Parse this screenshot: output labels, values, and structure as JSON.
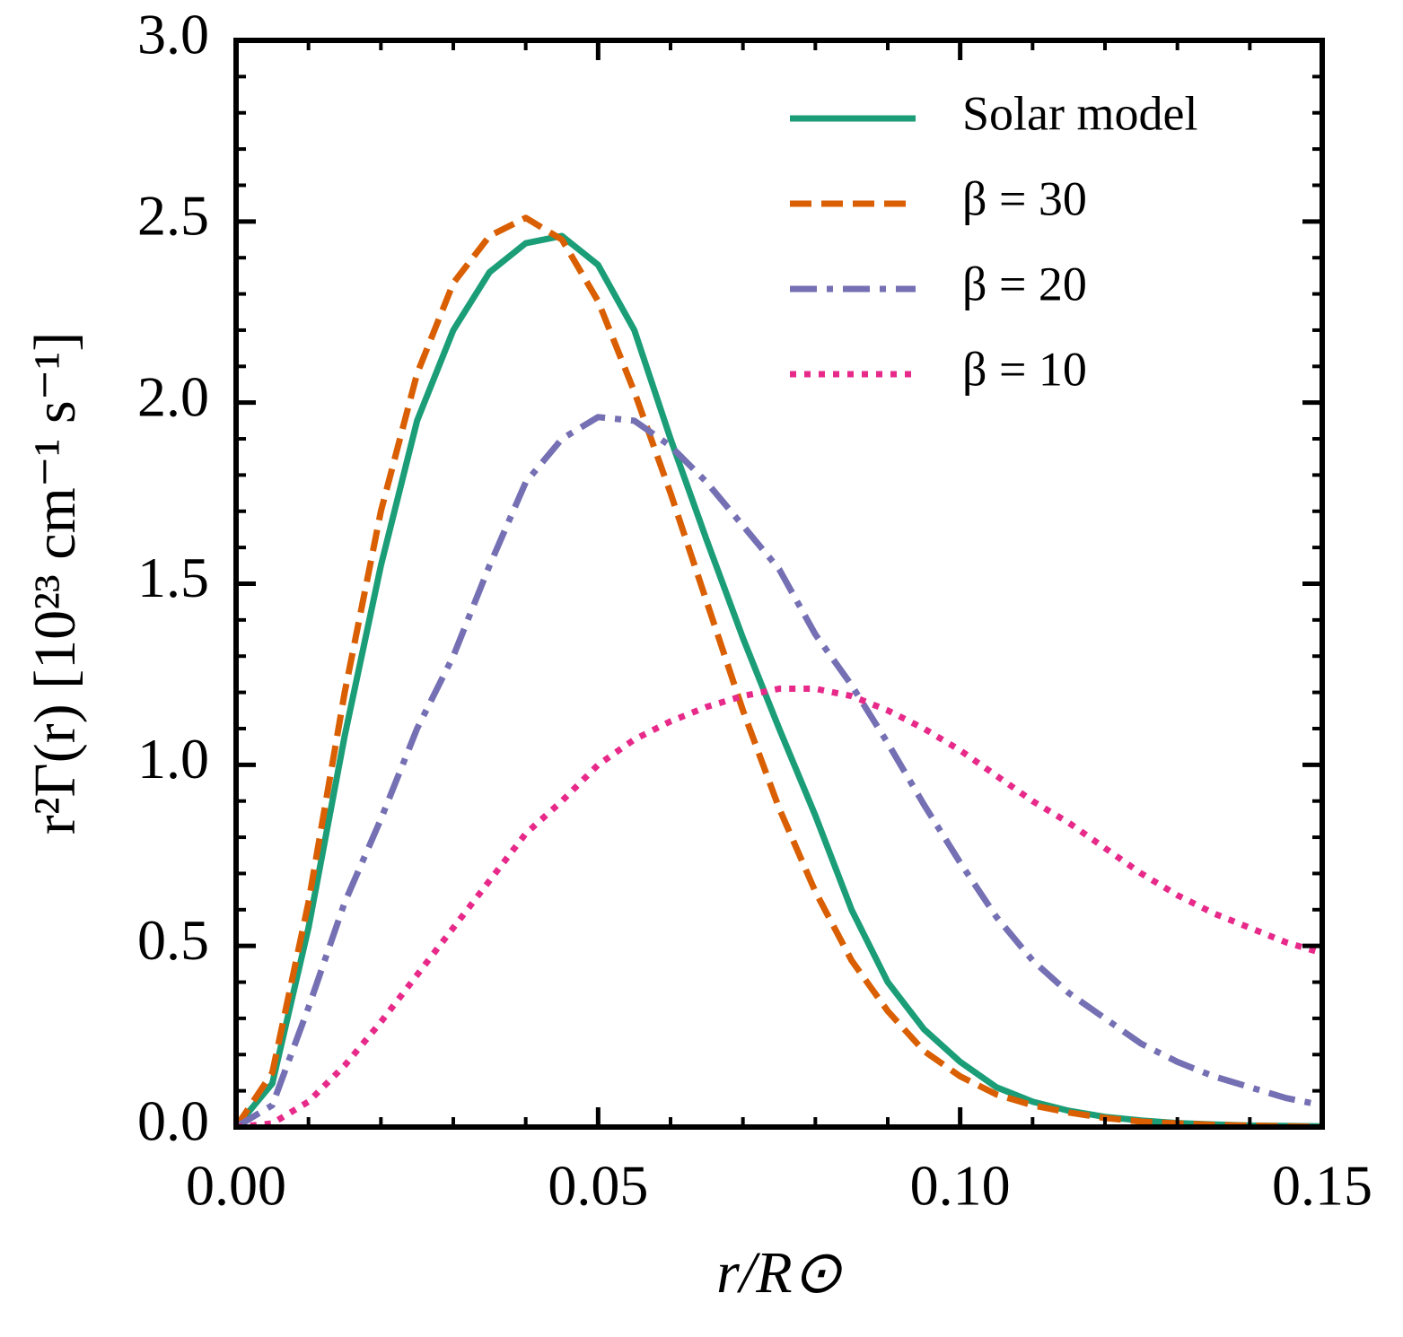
{
  "chart_data": {
    "type": "line",
    "xlabel": "r/R⊙",
    "ylabel": "r²Γ(r) [10²³ cm⁻¹ s⁻¹]",
    "x": [
      0,
      0.005,
      0.01,
      0.015,
      0.02,
      0.025,
      0.03,
      0.035,
      0.04,
      0.045,
      0.05,
      0.055,
      0.06,
      0.065,
      0.07,
      0.075,
      0.08,
      0.085,
      0.09,
      0.095,
      0.1,
      0.105,
      0.11,
      0.115,
      0.12,
      0.125,
      0.13,
      0.135,
      0.14,
      0.145,
      0.15
    ],
    "series": [
      {
        "name": "Solar model",
        "color": "#1b9e77",
        "linestyle": "solid",
        "values": [
          0,
          0.12,
          0.55,
          1.08,
          1.55,
          1.95,
          2.2,
          2.36,
          2.44,
          2.46,
          2.38,
          2.2,
          1.9,
          1.62,
          1.35,
          1.1,
          0.86,
          0.6,
          0.4,
          0.27,
          0.18,
          0.11,
          0.07,
          0.045,
          0.028,
          0.018,
          0.011,
          0.007,
          0.004,
          0.003,
          0.002
        ]
      },
      {
        "name": "β = 30",
        "color": "#d95f02",
        "linestyle": "dashed",
        "values": [
          0,
          0.15,
          0.62,
          1.2,
          1.7,
          2.08,
          2.33,
          2.46,
          2.51,
          2.45,
          2.28,
          2.03,
          1.75,
          1.45,
          1.15,
          0.88,
          0.65,
          0.46,
          0.32,
          0.21,
          0.14,
          0.09,
          0.06,
          0.04,
          0.025,
          0.015,
          0.01,
          0.006,
          0.004,
          0.002,
          0.001
        ]
      },
      {
        "name": "β = 20",
        "color": "#7570b3",
        "linestyle": "dashdot",
        "values": [
          0,
          0.06,
          0.33,
          0.62,
          0.85,
          1.1,
          1.3,
          1.55,
          1.78,
          1.9,
          1.96,
          1.95,
          1.88,
          1.78,
          1.66,
          1.54,
          1.36,
          1.22,
          1.06,
          0.89,
          0.73,
          0.58,
          0.46,
          0.37,
          0.3,
          0.23,
          0.18,
          0.14,
          0.11,
          0.08,
          0.06
        ]
      },
      {
        "name": "β = 10",
        "color": "#e7298a",
        "linestyle": "dotted",
        "values": [
          0,
          0.01,
          0.07,
          0.17,
          0.29,
          0.42,
          0.55,
          0.68,
          0.81,
          0.9,
          1.0,
          1.07,
          1.12,
          1.16,
          1.19,
          1.21,
          1.21,
          1.19,
          1.15,
          1.1,
          1.04,
          0.97,
          0.9,
          0.84,
          0.77,
          0.7,
          0.64,
          0.59,
          0.55,
          0.51,
          0.48
        ]
      }
    ],
    "xlim": [
      0,
      0.15
    ],
    "ylim": [
      0,
      3
    ],
    "xticks": [
      {
        "value": 0,
        "label": "0.00"
      },
      {
        "value": 0.05,
        "label": "0.05"
      },
      {
        "value": 0.1,
        "label": "0.10"
      },
      {
        "value": 0.15,
        "label": "0.15"
      }
    ],
    "yticks": [
      {
        "value": 0,
        "label": "0.0"
      },
      0.5,
      {
        "value": 1,
        "label": "1.0"
      },
      1.5,
      {
        "value": 2,
        "label": "2.0"
      },
      2.5,
      {
        "value": 3,
        "label": "3.0"
      }
    ],
    "minor_divisions": 5,
    "legend": "upper right",
    "grid": false
  }
}
